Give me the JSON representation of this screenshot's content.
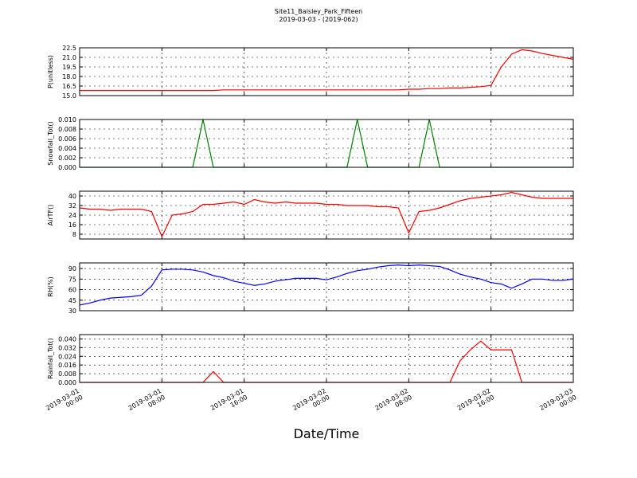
{
  "title": "Site11_Baisley_Park_Fifteen",
  "subtitle": "2019-03-03 - (2019-062)",
  "xlabel": "Date/Time",
  "chart_data": [
    {
      "type": "line",
      "ylabel": "P(unitless)",
      "grid": true,
      "ylim": [
        15.0,
        22.5
      ],
      "yticks": [
        {
          "value": 15.0,
          "label": "15.0"
        },
        16.5,
        {
          "value": 18.0,
          "label": "18.0"
        },
        19.5,
        {
          "value": 21.0,
          "label": "21.0"
        },
        22.5
      ],
      "xlim": [
        "2019-03-01 00:00",
        "2019-03-03 00:00"
      ],
      "x": [
        "2019-03-01 00:00",
        "2019-03-01 01:00",
        "2019-03-01 02:00",
        "2019-03-01 03:00",
        "2019-03-01 04:00",
        "2019-03-01 05:00",
        "2019-03-01 06:00",
        "2019-03-01 07:00",
        "2019-03-01 08:00",
        "2019-03-01 09:00",
        "2019-03-01 10:00",
        "2019-03-01 11:00",
        "2019-03-01 12:00",
        "2019-03-01 13:00",
        "2019-03-01 14:00",
        "2019-03-01 15:00",
        "2019-03-01 16:00",
        "2019-03-01 17:00",
        "2019-03-01 18:00",
        "2019-03-01 19:00",
        "2019-03-01 20:00",
        "2019-03-01 21:00",
        "2019-03-01 22:00",
        "2019-03-01 23:00",
        "2019-03-02 00:00",
        "2019-03-02 01:00",
        "2019-03-02 02:00",
        "2019-03-02 03:00",
        "2019-03-02 04:00",
        "2019-03-02 05:00",
        "2019-03-02 06:00",
        "2019-03-02 07:00",
        "2019-03-02 08:00",
        "2019-03-02 09:00",
        "2019-03-02 10:00",
        "2019-03-02 11:00",
        "2019-03-02 12:00",
        "2019-03-02 13:00",
        "2019-03-02 14:00",
        "2019-03-02 15:00",
        "2019-03-02 16:00",
        "2019-03-02 17:00",
        "2019-03-02 18:00",
        "2019-03-02 19:00",
        "2019-03-02 20:00",
        "2019-03-02 21:00",
        "2019-03-02 22:00",
        "2019-03-02 23:00",
        "2019-03-03 00:00"
      ],
      "series": [
        {
          "color": "#ff0000",
          "values": [
            15.8,
            15.8,
            15.8,
            15.8,
            15.8,
            15.8,
            15.8,
            15.8,
            15.8,
            15.8,
            15.8,
            15.8,
            15.8,
            15.8,
            15.9,
            15.9,
            15.9,
            15.9,
            15.9,
            15.9,
            15.9,
            15.9,
            15.9,
            15.9,
            15.9,
            15.9,
            15.9,
            15.9,
            15.9,
            15.9,
            15.9,
            15.9,
            16.0,
            16.0,
            16.1,
            16.1,
            16.2,
            16.2,
            16.3,
            16.4,
            16.6,
            19.5,
            21.5,
            22.2,
            22.0,
            21.6,
            21.3,
            21.0,
            20.7
          ]
        }
      ]
    },
    {
      "type": "line",
      "ylabel": "Snowfall_Tot()",
      "grid": true,
      "ylim": [
        0,
        0.01
      ],
      "yticks": [
        {
          "value": 0,
          "label": "0.000"
        },
        {
          "value": 0.002,
          "label": "0.002"
        },
        {
          "value": 0.004,
          "label": "0.004"
        },
        {
          "value": 0.006,
          "label": "0.006"
        },
        {
          "value": 0.008,
          "label": "0.008"
        },
        {
          "value": 0.01,
          "label": "0.010"
        }
      ],
      "xlim": [
        "2019-03-01 00:00",
        "2019-03-03 00:00"
      ],
      "x": [
        "2019-03-01 00:00",
        "2019-03-01 01:00",
        "2019-03-01 02:00",
        "2019-03-01 03:00",
        "2019-03-01 04:00",
        "2019-03-01 05:00",
        "2019-03-01 06:00",
        "2019-03-01 07:00",
        "2019-03-01 08:00",
        "2019-03-01 09:00",
        "2019-03-01 10:00",
        "2019-03-01 11:00",
        "2019-03-01 12:00",
        "2019-03-01 13:00",
        "2019-03-01 14:00",
        "2019-03-01 15:00",
        "2019-03-01 16:00",
        "2019-03-01 17:00",
        "2019-03-01 18:00",
        "2019-03-01 19:00",
        "2019-03-01 20:00",
        "2019-03-01 21:00",
        "2019-03-01 22:00",
        "2019-03-01 23:00",
        "2019-03-02 00:00",
        "2019-03-02 01:00",
        "2019-03-02 02:00",
        "2019-03-02 03:00",
        "2019-03-02 04:00",
        "2019-03-02 05:00",
        "2019-03-02 06:00",
        "2019-03-02 07:00",
        "2019-03-02 08:00",
        "2019-03-02 09:00",
        "2019-03-02 10:00",
        "2019-03-02 11:00",
        "2019-03-02 12:00",
        "2019-03-02 13:00",
        "2019-03-02 14:00",
        "2019-03-02 15:00",
        "2019-03-02 16:00",
        "2019-03-02 17:00",
        "2019-03-02 18:00",
        "2019-03-02 19:00",
        "2019-03-02 20:00",
        "2019-03-02 21:00",
        "2019-03-02 22:00",
        "2019-03-02 23:00",
        "2019-03-03 00:00"
      ],
      "series": [
        {
          "color": "#008000",
          "values": [
            0,
            0,
            0,
            0,
            0,
            0,
            0,
            0,
            0,
            0,
            0,
            0,
            0.01,
            0,
            0,
            0,
            0,
            0,
            0,
            0,
            0,
            0,
            0,
            0,
            0,
            0,
            0,
            0.01,
            0,
            0,
            0,
            0,
            0,
            0,
            0.01,
            0,
            0,
            0,
            0,
            0,
            0,
            0,
            0,
            0,
            0,
            0,
            0,
            0,
            0
          ]
        }
      ]
    },
    {
      "type": "line",
      "ylabel": "AirTF()",
      "grid": true,
      "ylim": [
        4,
        44
      ],
      "yticks": [
        8,
        16,
        24,
        32,
        40
      ],
      "xlim": [
        "2019-03-01 00:00",
        "2019-03-03 00:00"
      ],
      "x": [
        "2019-03-01 00:00",
        "2019-03-01 01:00",
        "2019-03-01 02:00",
        "2019-03-01 03:00",
        "2019-03-01 04:00",
        "2019-03-01 05:00",
        "2019-03-01 06:00",
        "2019-03-01 07:00",
        "2019-03-01 08:00",
        "2019-03-01 09:00",
        "2019-03-01 10:00",
        "2019-03-01 11:00",
        "2019-03-01 12:00",
        "2019-03-01 13:00",
        "2019-03-01 14:00",
        "2019-03-01 15:00",
        "2019-03-01 16:00",
        "2019-03-01 17:00",
        "2019-03-01 18:00",
        "2019-03-01 19:00",
        "2019-03-01 20:00",
        "2019-03-01 21:00",
        "2019-03-01 22:00",
        "2019-03-01 23:00",
        "2019-03-02 00:00",
        "2019-03-02 01:00",
        "2019-03-02 02:00",
        "2019-03-02 03:00",
        "2019-03-02 04:00",
        "2019-03-02 05:00",
        "2019-03-02 06:00",
        "2019-03-02 07:00",
        "2019-03-02 08:00",
        "2019-03-02 09:00",
        "2019-03-02 10:00",
        "2019-03-02 11:00",
        "2019-03-02 12:00",
        "2019-03-02 13:00",
        "2019-03-02 14:00",
        "2019-03-02 15:00",
        "2019-03-02 16:00",
        "2019-03-02 17:00",
        "2019-03-02 18:00",
        "2019-03-02 19:00",
        "2019-03-02 20:00",
        "2019-03-02 21:00",
        "2019-03-02 22:00",
        "2019-03-02 23:00",
        "2019-03-03 00:00"
      ],
      "series": [
        {
          "color": "#ff0000",
          "values": [
            30,
            29,
            29,
            28,
            29,
            29,
            29,
            27,
            6,
            24,
            25,
            27,
            33,
            33,
            34,
            35,
            33,
            37,
            35,
            34,
            35,
            34,
            34,
            34,
            33,
            33,
            32,
            32,
            32,
            31,
            31,
            30,
            9,
            27,
            28,
            30,
            33,
            36,
            38,
            39,
            40,
            41,
            43,
            41,
            39,
            38,
            38,
            38,
            38
          ]
        }
      ]
    },
    {
      "type": "line",
      "ylabel": "RH(%)",
      "grid": true,
      "ylim": [
        30,
        98
      ],
      "yticks": [
        30,
        45,
        60,
        75,
        90
      ],
      "xlim": [
        "2019-03-01 00:00",
        "2019-03-03 00:00"
      ],
      "x": [
        "2019-03-01 00:00",
        "2019-03-01 01:00",
        "2019-03-01 02:00",
        "2019-03-01 03:00",
        "2019-03-01 04:00",
        "2019-03-01 05:00",
        "2019-03-01 06:00",
        "2019-03-01 07:00",
        "2019-03-01 08:00",
        "2019-03-01 09:00",
        "2019-03-01 10:00",
        "2019-03-01 11:00",
        "2019-03-01 12:00",
        "2019-03-01 13:00",
        "2019-03-01 14:00",
        "2019-03-01 15:00",
        "2019-03-01 16:00",
        "2019-03-01 17:00",
        "2019-03-01 18:00",
        "2019-03-01 19:00",
        "2019-03-01 20:00",
        "2019-03-01 21:00",
        "2019-03-01 22:00",
        "2019-03-01 23:00",
        "2019-03-02 00:00",
        "2019-03-02 01:00",
        "2019-03-02 02:00",
        "2019-03-02 03:00",
        "2019-03-02 04:00",
        "2019-03-02 05:00",
        "2019-03-02 06:00",
        "2019-03-02 07:00",
        "2019-03-02 08:00",
        "2019-03-02 09:00",
        "2019-03-02 10:00",
        "2019-03-02 11:00",
        "2019-03-02 12:00",
        "2019-03-02 13:00",
        "2019-03-02 14:00",
        "2019-03-02 15:00",
        "2019-03-02 16:00",
        "2019-03-02 17:00",
        "2019-03-02 18:00",
        "2019-03-02 19:00",
        "2019-03-02 20:00",
        "2019-03-02 21:00",
        "2019-03-02 22:00",
        "2019-03-02 23:00",
        "2019-03-03 00:00"
      ],
      "series": [
        {
          "color": "#0000ff",
          "values": [
            38,
            41,
            45,
            48,
            49,
            50,
            52,
            65,
            88,
            89,
            89,
            88,
            85,
            80,
            77,
            72,
            69,
            66,
            68,
            72,
            74,
            76,
            76,
            76,
            74,
            78,
            83,
            87,
            89,
            92,
            94,
            95,
            94,
            95,
            94,
            93,
            88,
            82,
            78,
            75,
            70,
            68,
            62,
            68,
            75,
            75,
            73,
            73,
            75
          ]
        }
      ]
    },
    {
      "type": "line",
      "ylabel": "Rainfall_Tot()",
      "grid": true,
      "ylim": [
        0,
        0.044
      ],
      "yticks": [
        {
          "value": 0,
          "label": "0.000"
        },
        {
          "value": 0.008,
          "label": "0.008"
        },
        {
          "value": 0.016,
          "label": "0.016"
        },
        {
          "value": 0.024,
          "label": "0.024"
        },
        {
          "value": 0.032,
          "label": "0.032"
        },
        {
          "value": 0.04,
          "label": "0.040"
        }
      ],
      "xlim": [
        "2019-03-01 00:00",
        "2019-03-03 00:00"
      ],
      "xticks": [
        {
          "value": "2019-03-01 00:00",
          "label": "2019-03-01\n00:00"
        },
        {
          "value": "2019-03-01 08:00",
          "label": "2019-03-01\n08:00"
        },
        {
          "value": "2019-03-01 16:00",
          "label": "2019-03-01\n16:00"
        },
        {
          "value": "2019-03-02 00:00",
          "label": "2019-03-02\n00:00"
        },
        {
          "value": "2019-03-02 08:00",
          "label": "2019-03-02\n08:00"
        },
        {
          "value": "2019-03-02 16:00",
          "label": "2019-03-02\n16:00"
        },
        {
          "value": "2019-03-03 00:00",
          "label": "2019-03-03\n00:00"
        }
      ],
      "x": [
        "2019-03-01 00:00",
        "2019-03-01 01:00",
        "2019-03-01 02:00",
        "2019-03-01 03:00",
        "2019-03-01 04:00",
        "2019-03-01 05:00",
        "2019-03-01 06:00",
        "2019-03-01 07:00",
        "2019-03-01 08:00",
        "2019-03-01 09:00",
        "2019-03-01 10:00",
        "2019-03-01 11:00",
        "2019-03-01 12:00",
        "2019-03-01 13:00",
        "2019-03-01 14:00",
        "2019-03-01 15:00",
        "2019-03-01 16:00",
        "2019-03-01 17:00",
        "2019-03-01 18:00",
        "2019-03-01 19:00",
        "2019-03-01 20:00",
        "2019-03-01 21:00",
        "2019-03-01 22:00",
        "2019-03-01 23:00",
        "2019-03-02 00:00",
        "2019-03-02 01:00",
        "2019-03-02 02:00",
        "2019-03-02 03:00",
        "2019-03-02 04:00",
        "2019-03-02 05:00",
        "2019-03-02 06:00",
        "2019-03-02 07:00",
        "2019-03-02 08:00",
        "2019-03-02 09:00",
        "2019-03-02 10:00",
        "2019-03-02 11:00",
        "2019-03-02 12:00",
        "2019-03-02 13:00",
        "2019-03-02 14:00",
        "2019-03-02 15:00",
        "2019-03-02 16:00",
        "2019-03-02 17:00",
        "2019-03-02 18:00",
        "2019-03-02 19:00",
        "2019-03-02 20:00",
        "2019-03-02 21:00",
        "2019-03-02 22:00",
        "2019-03-02 23:00",
        "2019-03-03 00:00"
      ],
      "series": [
        {
          "color": "#ff0000",
          "values": [
            0,
            0,
            0,
            0,
            0,
            0,
            0,
            0,
            0,
            0,
            0,
            0,
            0,
            0.01,
            0,
            0,
            0,
            0,
            0,
            0,
            0,
            0,
            0,
            0,
            0,
            0,
            0,
            0,
            0,
            0,
            0,
            0,
            0,
            0,
            0,
            0,
            0,
            0.02,
            0.03,
            0.038,
            0.03,
            0.03,
            0.03,
            0,
            0,
            0,
            0,
            0,
            0
          ]
        }
      ]
    }
  ]
}
